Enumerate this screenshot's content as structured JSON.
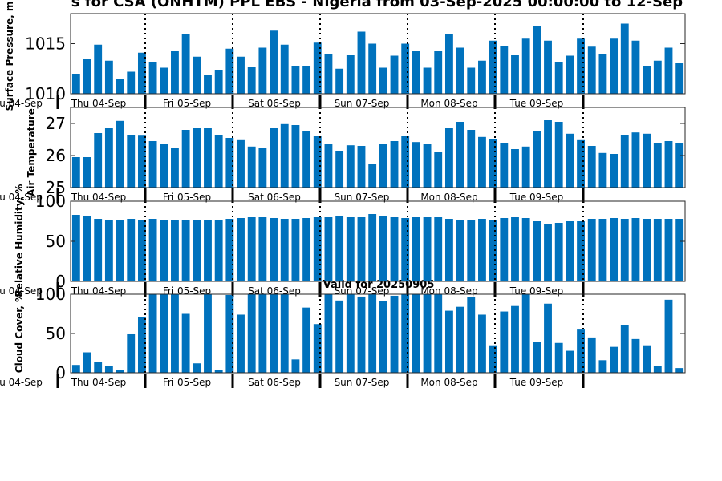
{
  "title": "s for CSA (ONHTM) PPL EBS  - Nigeria from 03-Sep-2025 00:00:00 to 12-Sep",
  "valid_label": "Valid for 20250905",
  "colors": {
    "bar": "#0072bd",
    "axis": "#262626",
    "text": "#000000"
  },
  "day_labels": [
    "u 04-Sep",
    "Thu 04-Sep",
    "Fri 05-Sep",
    "Sat 06-Sep",
    "Sun 07-Sep",
    "Mon 08-Sep",
    "Tue 09-Sep"
  ],
  "chart_data": [
    {
      "type": "bar",
      "ylabel": "Surface Pressure, m",
      "ylim": [
        1010,
        1018
      ],
      "yticks": [
        1010,
        1015
      ],
      "values": [
        1012.0,
        1013.5,
        1014.9,
        1013.3,
        1011.5,
        1012.2,
        1014.1,
        1013.2,
        1012.6,
        1014.3,
        1016.0,
        1013.7,
        1011.9,
        1012.4,
        1014.5,
        1013.7,
        1012.7,
        1014.6,
        1016.3,
        1014.9,
        1012.8,
        1012.8,
        1015.1,
        1014.0,
        1012.5,
        1013.9,
        1016.2,
        1015.0,
        1012.6,
        1013.8,
        1015.0,
        1014.3,
        1012.6,
        1014.3,
        1016.0,
        1014.6,
        1012.6,
        1013.3,
        1015.3,
        1014.8,
        1013.9,
        1015.5,
        1016.8,
        1015.3,
        1013.2,
        1013.8,
        1015.5,
        1014.7,
        1014.0,
        1015.5,
        1017.0,
        1015.3,
        1012.8,
        1013.3,
        1014.6,
        1013.1
      ]
    },
    {
      "type": "bar",
      "ylabel": "Air Temperature",
      "ylim": [
        25,
        27.5
      ],
      "yticks": [
        25,
        26,
        27
      ],
      "values": [
        25.95,
        25.95,
        26.7,
        26.85,
        27.08,
        26.65,
        26.62,
        26.45,
        26.35,
        26.25,
        26.8,
        26.85,
        26.85,
        26.65,
        26.55,
        26.48,
        26.28,
        26.25,
        26.85,
        26.98,
        26.95,
        26.75,
        26.6,
        26.35,
        26.15,
        26.32,
        26.3,
        25.75,
        26.35,
        26.45,
        26.6,
        26.42,
        26.35,
        26.1,
        26.85,
        27.05,
        26.8,
        26.58,
        26.52,
        26.4,
        26.2,
        26.28,
        26.75,
        27.1,
        27.05,
        26.68,
        26.48,
        26.3,
        26.08,
        26.05,
        26.65,
        26.72,
        26.68,
        26.38,
        26.45,
        26.38
      ]
    },
    {
      "type": "bar",
      "ylabel": "Relative Humidity, %",
      "ylim": [
        0,
        100
      ],
      "yticks": [
        0,
        50,
        100
      ],
      "values": [
        83,
        82,
        78,
        77,
        76,
        78,
        77,
        78,
        77,
        77,
        76,
        76,
        76,
        77,
        78,
        79,
        80,
        80,
        79,
        78,
        78,
        79,
        80,
        80,
        81,
        80,
        80,
        84,
        81,
        80,
        79,
        80,
        80,
        80,
        78,
        77,
        77,
        78,
        77,
        79,
        80,
        79,
        75,
        72,
        73,
        75,
        75,
        78,
        78,
        79,
        78,
        79,
        78,
        78,
        78,
        78
      ]
    },
    {
      "type": "bar",
      "ylabel": "Cloud Cover, %",
      "ylim": [
        0,
        100
      ],
      "yticks": [
        0,
        50,
        100
      ],
      "values": [
        10,
        26,
        14,
        9,
        4,
        49,
        71,
        100,
        100,
        100,
        75,
        12,
        100,
        4,
        99,
        74,
        100,
        100,
        100,
        100,
        17,
        83,
        62,
        100,
        92,
        100,
        97,
        100,
        91,
        98,
        100,
        100,
        100,
        100,
        79,
        84,
        96,
        74,
        35,
        78,
        85,
        100,
        39,
        88,
        38,
        28,
        55,
        45,
        16,
        33,
        61,
        43,
        35,
        9,
        93,
        6
      ]
    }
  ]
}
